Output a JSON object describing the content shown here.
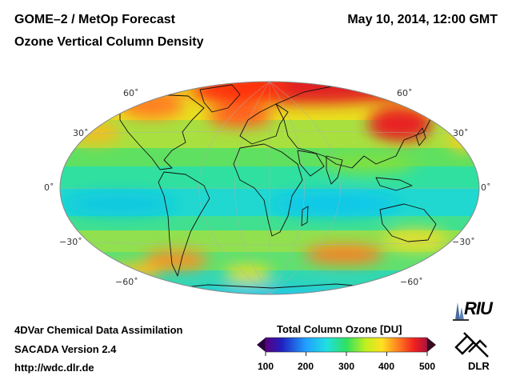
{
  "header": {
    "title_left": "GOME–2 / MetOp Forecast",
    "subtitle": "Ozone Vertical Column Density",
    "date": "May 10, 2014, 12:00 GMT"
  },
  "map": {
    "projection": "hammer-aitoff",
    "lat_labels_left": [
      "60˚",
      "30˚",
      "0˚",
      "−30˚",
      "−60˚"
    ],
    "lat_labels_right": [
      "60˚",
      "30˚",
      "0˚",
      "−30˚",
      "−60˚"
    ]
  },
  "footer": {
    "line1": "4DVar Chemical Data Assimilation",
    "line2": "SACADA Version 2.4",
    "url": "http://wdc.dlr.de"
  },
  "colorbar": {
    "title": "Total Column Ozone [DU]",
    "ticks": [
      "100",
      "200",
      "300",
      "400",
      "500"
    ]
  },
  "logos": {
    "riu": "RIU",
    "dlr": "DLR"
  }
}
